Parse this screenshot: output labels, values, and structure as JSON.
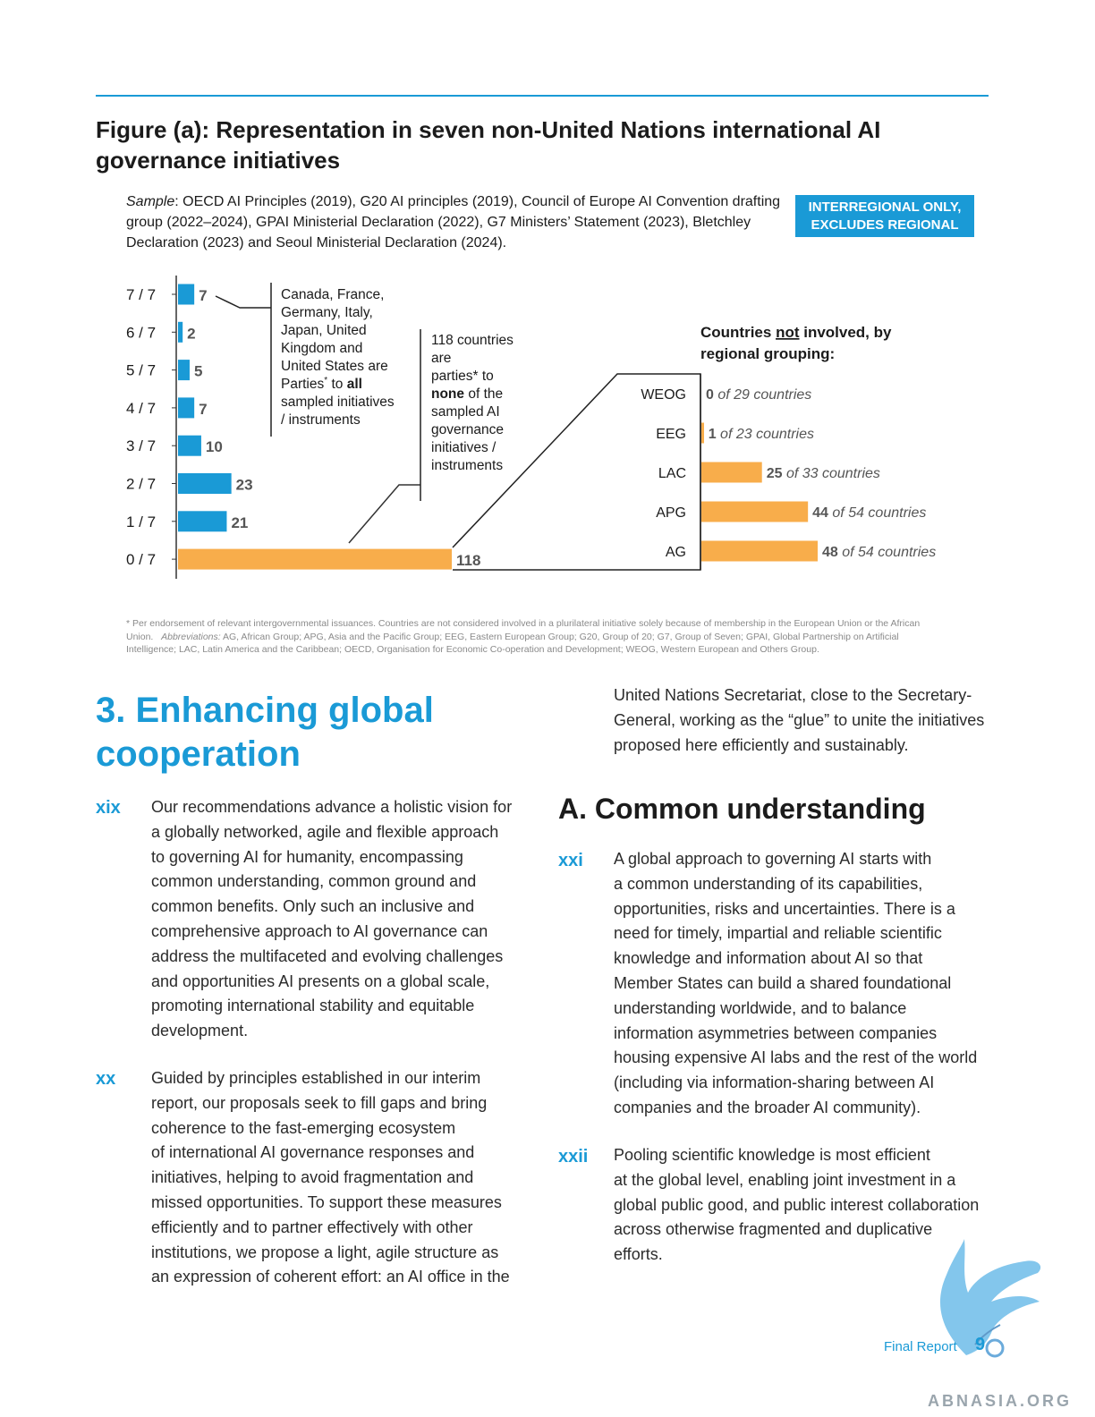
{
  "figure": {
    "title": "Figure (a): Representation in seven non-United Nations international AI governance initiatives",
    "sample_label": "Sample",
    "sample_text": ": OECD AI Principles (2019), G20 AI principles (2019), Council of Europe AI Convention drafting group (2022–2024), GPAI Ministerial Declaration (2022), G7 Ministers’ Statement (2023), Bletchley Declaration (2023) and Seoul Ministerial Declaration (2024).",
    "badge_line1": "INTERREGIONAL ONLY,",
    "badge_line2": "EXCLUDES REGIONAL",
    "annotation_all": [
      "Canada, France,",
      "Germany, Italy,",
      "Japan, United",
      "Kingdom and",
      "United States are",
      "Parties",
      " to ",
      "all",
      "sampled initiatives",
      "/ instruments"
    ],
    "annotation_none": [
      "118 countries",
      "are",
      "parties* to",
      "none",
      " of the",
      "sampled AI",
      "governance",
      "initiatives /",
      "instruments"
    ],
    "regional_title_1": "Countries ",
    "regional_title_not": "not",
    "regional_title_2": " involved, by",
    "regional_title_3": "regional grouping:",
    "footnote_main": "* Per endorsement of relevant intergovernmental issuances. Countries are not considered involved in a plurilateral initiative solely because of membership in the European Union or the African Union.",
    "footnote_abbr_label": "Abbreviations:",
    "footnote_abbr": " AG, African Group; APG, Asia and the Pacific Group; EEG, Eastern European Group; G20, Group of 20; G7, Group of Seven; GPAI, Global Partnership on Artificial Intelligence; LAC, Latin America and the Caribbean; OECD, Organisation for Economic Co-operation and Development; WEOG, Western European and Others Group."
  },
  "chart_data": [
    {
      "type": "bar",
      "orientation": "horizontal",
      "categories": [
        "7 / 7",
        "6 / 7",
        "5 / 7",
        "4 / 7",
        "3 / 7",
        "2 / 7",
        "1 / 7",
        "0 / 7"
      ],
      "values": [
        7,
        2,
        5,
        7,
        10,
        23,
        21,
        118
      ],
      "colors": [
        "#1a9ad6",
        "#1a9ad6",
        "#1a9ad6",
        "#1a9ad6",
        "#1a9ad6",
        "#1a9ad6",
        "#1a9ad6",
        "#f8ad4b"
      ]
    },
    {
      "type": "bar",
      "orientation": "horizontal",
      "categories": [
        "WEOG",
        "EEG",
        "LAC",
        "APG",
        "AG"
      ],
      "values": [
        0,
        1,
        25,
        44,
        48
      ],
      "totals": [
        29,
        23,
        33,
        54,
        54
      ],
      "label_of": "of",
      "label_countries": "countries",
      "color": "#f8ad4b"
    }
  ],
  "section": {
    "title_line1": "3. Enhancing global",
    "title_line2": "cooperation",
    "subheading": "A. Common understanding"
  },
  "paragraphs": {
    "xix_num": "xix",
    "xix_lines": [
      "Our recommendations advance a holistic vision for",
      "a globally networked, agile and flexible approach",
      "to governing AI for humanity, encompassing",
      "common understanding, common ground and",
      "common benefits. Only such an inclusive and",
      "comprehensive approach to AI governance can",
      "address the multifaceted and evolving challenges",
      "and opportunities AI presents on a global scale,",
      "promoting international stability and equitable",
      "development."
    ],
    "xx_num": "xx",
    "xx_lines": [
      "Guided by principles established in our interim",
      "report, our proposals seek to fill gaps and bring",
      "coherence to the fast-emerging ecosystem",
      "of international AI governance responses and",
      "initiatives, helping to avoid fragmentation and",
      "missed opportunities. To support these measures",
      "efficiently and to partner effectively with other",
      "institutions, we propose a light, agile structure as",
      "an expression of coherent effort: an AI office in the"
    ],
    "cont_lines": [
      "United Nations Secretariat, close to the Secretary-",
      "General, working as the “glue” to unite the initiatives",
      "proposed here efficiently and sustainably."
    ],
    "xxi_num": "xxi",
    "xxi_lines": [
      "A global approach to governing AI starts with",
      "a common understanding of its capabilities,",
      "opportunities, risks and uncertainties. There is a",
      "need for timely, impartial and reliable scientific",
      "knowledge and information about AI so that",
      "Member States can build a shared foundational",
      "understanding worldwide, and to balance",
      "information asymmetries between companies",
      "housing expensive AI labs and the rest of the world",
      "(including via information-sharing between AI",
      "companies and the broader AI community)."
    ],
    "xxii_num": "xxii",
    "xxii_lines": [
      "Pooling scientific knowledge is most efficient",
      "at the global level, enabling joint investment in a",
      "global public good, and public interest collaboration",
      "across otherwise fragmented and duplicative",
      "efforts."
    ]
  },
  "footer": {
    "label": "Final Report",
    "page": "9",
    "watermark": "ABNASIA.ORG"
  }
}
